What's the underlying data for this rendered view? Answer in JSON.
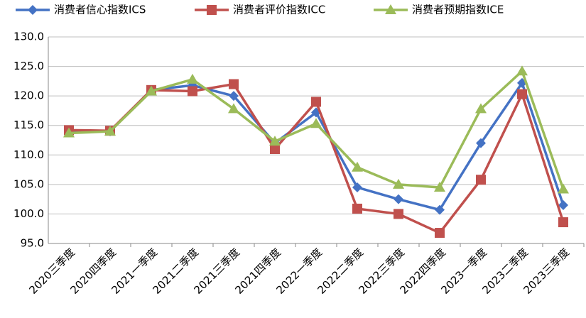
{
  "chart_data": {
    "type": "line",
    "categories": [
      "2020三季度",
      "2020四季度",
      "2021一季度",
      "2021二季度",
      "2021三季度",
      "2021四季度",
      "2022一季度",
      "2022二季度",
      "2022三季度",
      "2022四季度",
      "2023一季度",
      "2023二季度",
      "2023三季度"
    ],
    "series": [
      {
        "name": "消费者信心指数ICS",
        "color": "#4472c4",
        "marker": "diamond",
        "values": [
          114.0,
          114.0,
          121.0,
          121.8,
          120.0,
          112.0,
          117.2,
          104.5,
          102.5,
          100.7,
          112.0,
          122.2,
          101.5
        ]
      },
      {
        "name": "消费者评价指数ICC",
        "color": "#c0504d",
        "marker": "square",
        "values": [
          114.2,
          114.1,
          121.0,
          120.8,
          122.0,
          111.0,
          119.0,
          100.9,
          100.0,
          96.8,
          105.8,
          120.3,
          98.6
        ]
      },
      {
        "name": "消费者预期指数ICE",
        "color": "#9bbb59",
        "marker": "triangle",
        "values": [
          113.7,
          114.0,
          120.8,
          122.8,
          117.8,
          112.3,
          115.3,
          107.9,
          105.0,
          104.5,
          117.8,
          124.2,
          104.2
        ]
      }
    ],
    "ylim": [
      95,
      130
    ],
    "yticks": [
      {
        "value": 95,
        "label": "95.0"
      },
      {
        "value": 100,
        "label": "100.0"
      },
      {
        "value": 105,
        "label": "105.0"
      },
      {
        "value": 110,
        "label": "110.0"
      },
      {
        "value": 115,
        "label": "115.0"
      },
      {
        "value": 120,
        "label": "120.0"
      },
      {
        "value": 125,
        "label": "125.0"
      },
      {
        "value": 130,
        "label": "130.0"
      }
    ],
    "grid": true,
    "legend": "top"
  }
}
